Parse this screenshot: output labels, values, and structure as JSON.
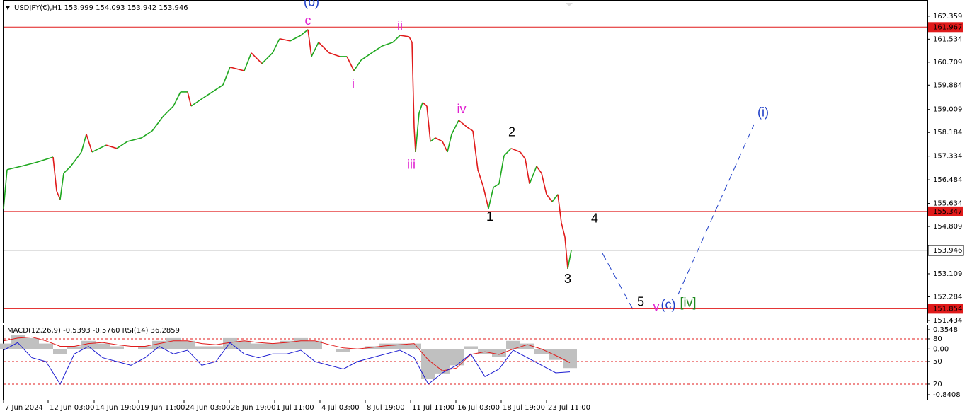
{
  "chart_data": [
    {
      "type": "line",
      "title": "USDJPY(€),H1  153.999 154.093 153.942 153.946",
      "x": [
        0,
        5,
        25,
        45,
        70,
        75,
        80,
        85,
        95,
        110,
        117,
        125,
        145,
        160,
        175,
        195,
        210,
        225,
        240,
        250,
        260,
        265,
        280,
        295,
        310,
        320,
        340,
        350,
        365,
        380,
        390,
        405,
        420,
        430,
        435,
        445,
        460,
        475,
        485,
        495,
        505,
        520,
        535,
        550,
        560,
        573,
        577,
        580,
        582,
        587,
        592,
        598,
        603,
        610,
        620,
        627,
        633,
        643,
        655,
        663,
        670,
        678,
        685,
        692,
        700,
        707,
        717,
        730,
        737,
        743,
        753,
        760,
        767,
        775,
        783,
        788,
        793,
        797,
        802
      ],
      "series": [
        {
          "colors": {
            "up": "#1fa81f",
            "down": "#e01a1a"
          },
          "values": [
            155.45,
            156.85,
            156.97,
            157.1,
            157.3,
            156.08,
            155.78,
            156.72,
            156.97,
            157.48,
            158.12,
            157.48,
            157.73,
            157.61,
            157.86,
            157.99,
            158.24,
            158.75,
            159.13,
            159.64,
            159.64,
            159.13,
            159.39,
            159.64,
            159.89,
            160.53,
            160.4,
            161.04,
            160.66,
            161.04,
            161.55,
            161.47,
            161.67,
            161.88,
            160.91,
            161.42,
            161.04,
            160.91,
            160.91,
            160.4,
            160.78,
            161.04,
            161.29,
            161.42,
            161.67,
            161.62,
            161.42,
            158.37,
            157.48,
            158.88,
            159.26,
            159.13,
            157.86,
            157.99,
            157.86,
            157.48,
            158.12,
            158.62,
            158.37,
            158.24,
            156.85,
            156.21,
            155.45,
            156.21,
            156.34,
            157.35,
            157.61,
            157.48,
            157.23,
            156.34,
            156.97,
            156.72,
            155.96,
            155.7,
            155.96,
            154.94,
            154.43,
            153.29,
            153.95
          ]
        }
      ],
      "xlim": [
        0,
        1305
      ],
      "xticks": [
        {
          "value": 0,
          "label": "7 Jun 2024"
        },
        {
          "value": 63,
          "label": "12 Jun 03:00"
        },
        {
          "value": 128,
          "label": "14 Jun 19:00"
        },
        {
          "value": 191,
          "label": "19 Jun 11:00"
        },
        {
          "value": 255,
          "label": "24 Jun 03:00"
        },
        {
          "value": 319,
          "label": "26 Jun 19:00"
        },
        {
          "value": 383,
          "label": "1 Jul 11:00"
        },
        {
          "value": 447,
          "label": "4 Jul 03:00"
        },
        {
          "value": 511,
          "label": "8 Jul 19:00"
        },
        {
          "value": 575,
          "label": "11 Jul 11:00"
        },
        {
          "value": 639,
          "label": "16 Jul 03:00"
        },
        {
          "value": 703,
          "label": "18 Jul 19:00"
        },
        {
          "value": 767,
          "label": "23 Jul 11:00"
        }
      ],
      "ylim": [
        151.33,
        162.61
      ],
      "yticks": [
        162.359,
        161.534,
        160.709,
        159.884,
        159.009,
        158.184,
        157.334,
        156.484,
        155.634,
        154.809,
        153.109,
        152.284,
        151.434
      ],
      "hlines": [
        {
          "value": 161.967,
          "color": "#e01a1a"
        },
        {
          "value": 155.347,
          "color": "#e01a1a"
        },
        {
          "value": 151.854,
          "color": "#e01a1a"
        }
      ],
      "last_price": {
        "value": 153.946,
        "color": "#c0c0c0"
      },
      "annotations": [
        {
          "text": "(b)",
          "color": "#1f3fc8",
          "x": 435,
          "y": 162.85
        },
        {
          "text": "c",
          "color": "#e020d0",
          "x": 430,
          "y": 162.17
        },
        {
          "text": "ii",
          "color": "#e020d0",
          "x": 560,
          "y": 161.98
        },
        {
          "text": "i",
          "color": "#e020d0",
          "x": 494,
          "y": 159.9
        },
        {
          "text": "iii",
          "color": "#e020d0",
          "x": 576,
          "y": 157.0
        },
        {
          "text": "iv",
          "color": "#e020d0",
          "x": 647,
          "y": 158.99
        },
        {
          "text": "2",
          "color": "#000000",
          "x": 718,
          "y": 158.17
        },
        {
          "text": "1",
          "color": "#000000",
          "x": 687,
          "y": 155.14
        },
        {
          "text": "3",
          "color": "#000000",
          "x": 797,
          "y": 152.9
        },
        {
          "text": "4",
          "color": "#000000",
          "x": 835,
          "y": 155.07
        },
        {
          "text": "5",
          "color": "#000000",
          "x": 900,
          "y": 152.07
        },
        {
          "text": "v",
          "color": "#e020d0",
          "x": 922,
          "y": 151.89
        },
        {
          "text": "(c)",
          "color": "#1f3fc8",
          "x": 939,
          "y": 151.97
        },
        {
          "text": "[iv]",
          "color": "#1f8a1f",
          "x": 967,
          "y": 152.05
        },
        {
          "text": "(i)",
          "color": "#1f3fc8",
          "x": 1073,
          "y": 158.88
        }
      ]
    },
    {
      "type": "line",
      "title": "MACD(12,26,9) -0.5393 -0.5760 RSI(14) 36.2859",
      "x": [
        0,
        20,
        40,
        60,
        80,
        100,
        120,
        140,
        160,
        180,
        200,
        220,
        240,
        260,
        280,
        300,
        320,
        340,
        360,
        380,
        400,
        420,
        440,
        460,
        480,
        500,
        520,
        540,
        560,
        580,
        600,
        620,
        640,
        660,
        680,
        700,
        720,
        740,
        760,
        780,
        800
      ],
      "series": [
        {
          "style": "bar",
          "color": "#c0c0c0",
          "values": [
            0.1,
            0.25,
            0.2,
            0.1,
            -0.1,
            0.05,
            0.15,
            0.1,
            0.05,
            0.0,
            0.05,
            0.15,
            0.2,
            0.15,
            0.05,
            0.05,
            0.2,
            0.15,
            0.1,
            0.1,
            0.15,
            0.2,
            0.15,
            0.0,
            -0.05,
            0.0,
            0.05,
            0.1,
            0.1,
            0.1,
            -0.55,
            -0.45,
            -0.3,
            0.05,
            -0.1,
            -0.15,
            0.15,
            0.1,
            -0.1,
            -0.2,
            -0.35
          ]
        },
        {
          "style": "line",
          "color": "#e01a1a",
          "values": [
            0.15,
            0.2,
            0.22,
            0.15,
            0.05,
            0.05,
            0.1,
            0.12,
            0.08,
            0.05,
            0.05,
            0.1,
            0.15,
            0.15,
            0.1,
            0.08,
            0.12,
            0.15,
            0.12,
            0.1,
            0.12,
            0.15,
            0.15,
            0.08,
            0.02,
            0.0,
            0.03,
            0.06,
            0.08,
            0.1,
            -0.2,
            -0.4,
            -0.35,
            -0.1,
            -0.05,
            -0.1,
            0.0,
            0.08,
            0.0,
            -0.12,
            -0.25
          ]
        },
        {
          "style": "line",
          "color": "#1a1ad0",
          "axis": "y2",
          "values": [
            65,
            75,
            55,
            50,
            20,
            60,
            70,
            55,
            50,
            45,
            55,
            70,
            60,
            65,
            45,
            50,
            75,
            60,
            55,
            60,
            60,
            65,
            50,
            45,
            40,
            50,
            55,
            60,
            65,
            55,
            20,
            35,
            45,
            60,
            30,
            40,
            65,
            55,
            45,
            35,
            36.2859
          ]
        }
      ],
      "xlim": [
        0,
        1305
      ],
      "ylim": [
        -0.945,
        0.433
      ],
      "yticks": [
        0.3548,
        {
          "value": 0,
          "label": "0.00"
        },
        -0.8408
      ],
      "y2lim": [
        -1.6,
        97.8
      ],
      "y2ticks": [
        80,
        50,
        20
      ],
      "y2grid": {
        "color": "#e01a1a",
        "dashed": true
      }
    }
  ]
}
